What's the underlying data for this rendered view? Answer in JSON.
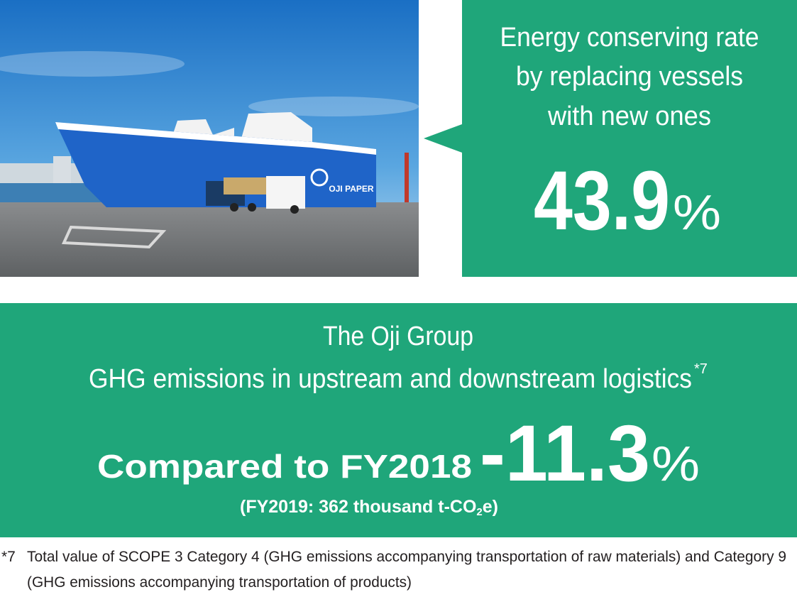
{
  "photo": {
    "ship_name": "OJI PAPER"
  },
  "callout": {
    "lines": [
      "Energy conserving rate",
      "by replacing vessels",
      "with new ones"
    ],
    "value": "43.9",
    "unit": "%"
  },
  "summary": {
    "title": "The Oji Group",
    "subtitle": "GHG emissions in upstream and downstream logistics",
    "subtitle_note": "*7",
    "comparison": "Compared to FY2018",
    "value": "-11.3",
    "unit": "%",
    "detail_before": "(FY2019: 362 thousand t-CO",
    "detail_sub": "2",
    "detail_after": "e)"
  },
  "footnote": {
    "marker": "*7",
    "lines": [
      "Total value of SCOPE 3 Category 4 (GHG emissions accompanying transportation of raw materials) and Category 9",
      "(GHG emissions accompanying transportation of products)"
    ]
  }
}
